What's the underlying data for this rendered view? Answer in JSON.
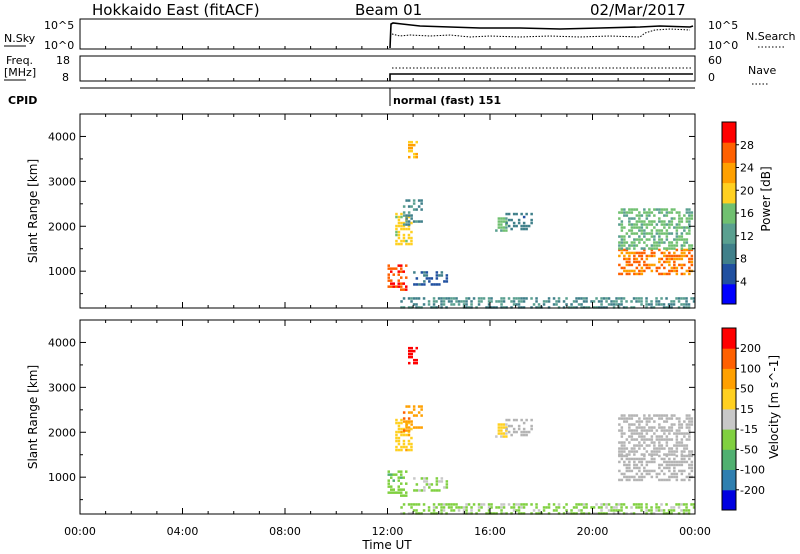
{
  "header": {
    "title": "Hokkaido East (fitACF)",
    "beam": "Beam 01",
    "date": "02/Mar/2017"
  },
  "strips": {
    "nsky_label": "N.Sky",
    "nsky_ticks": [
      "10^5",
      "10^0"
    ],
    "nsearch_label": "N.Search",
    "nsearch_ticks": [
      "10^5",
      "10^0"
    ],
    "freq_label_1": "Freq.",
    "freq_label_2": "[MHz]",
    "freq_ticks": [
      "18",
      "8"
    ],
    "nave_label": "Nave",
    "nave_ticks": [
      "60",
      "0"
    ],
    "cpid_label": "CPID",
    "cpid_value": "normal (fast) 151"
  },
  "colors": {
    "power_scale": [
      "#0000ff",
      "#2050a0",
      "#40808a",
      "#5aa090",
      "#70c070",
      "#ffd020",
      "#ffa000",
      "#ff6000",
      "#ff0000"
    ],
    "velocity_scale": [
      "#0000e0",
      "#2f7fb0",
      "#50b070",
      "#80d040",
      "#c8c8c8",
      "#ffd020",
      "#ffa000",
      "#ff6000",
      "#ff0000"
    ],
    "ground_scatter": "#b4b4b4"
  },
  "chart_data": [
    {
      "type": "heatmap",
      "name": "power",
      "xlabel": "Time UT",
      "ylabel": "Slant Range [km]",
      "xlim_hours": [
        0,
        24
      ],
      "x_ticks": [
        "00:00",
        "04:00",
        "08:00",
        "12:00",
        "16:00",
        "20:00",
        "00:00"
      ],
      "ylim_km": [
        180,
        4500
      ],
      "y_ticks": [
        1000,
        2000,
        3000,
        4000
      ],
      "colorbar_label": "Power [dB]",
      "colorbar_ticks": [
        "28",
        "24",
        "20",
        "16",
        "12",
        "8",
        "4"
      ],
      "colorbar_range": [
        0,
        30
      ],
      "regions": [
        {
          "t0": 12.0,
          "t1": 12.7,
          "r0": 550,
          "r1": 1150,
          "value": 26
        },
        {
          "t0": 12.3,
          "t1": 12.9,
          "r0": 1600,
          "r1": 2300,
          "value": 18
        },
        {
          "t0": 12.6,
          "t1": 13.3,
          "r0": 2000,
          "r1": 2600,
          "value": 10
        },
        {
          "t0": 12.8,
          "t1": 13.1,
          "r0": 3500,
          "r1": 3900,
          "value": 20
        },
        {
          "t0": 13.0,
          "t1": 14.3,
          "r0": 700,
          "r1": 1000,
          "value": 6
        },
        {
          "t0": 16.2,
          "t1": 16.6,
          "r0": 1900,
          "r1": 2200,
          "value": 14
        },
        {
          "t0": 16.6,
          "t1": 17.6,
          "r0": 1900,
          "r1": 2300,
          "value": 8
        },
        {
          "t0": 21.0,
          "t1": 23.9,
          "r0": 900,
          "r1": 1500,
          "value": 24
        },
        {
          "t0": 21.0,
          "t1": 23.9,
          "r0": 1500,
          "r1": 2400,
          "value": 14
        },
        {
          "t0": 12.5,
          "t1": 24.0,
          "r0": 180,
          "r1": 420,
          "value": 10
        }
      ]
    },
    {
      "type": "heatmap",
      "name": "velocity",
      "xlabel": "Time UT",
      "ylabel": "Slant Range [km]",
      "xlim_hours": [
        0,
        24
      ],
      "x_ticks": [
        "00:00",
        "04:00",
        "08:00",
        "12:00",
        "16:00",
        "20:00",
        "00:00"
      ],
      "ylim_km": [
        180,
        4500
      ],
      "y_ticks": [
        1000,
        2000,
        3000,
        4000
      ],
      "colorbar_label": "Velocity [m s^-1]",
      "colorbar_ticks": [
        "200",
        "100",
        "50",
        "15",
        "-15",
        "-50",
        "-100",
        "-200"
      ],
      "colorbar_range": [
        -250,
        250
      ],
      "regions": [
        {
          "t0": 12.0,
          "t1": 12.7,
          "r0": 550,
          "r1": 1150,
          "value": -60
        },
        {
          "t0": 12.3,
          "t1": 12.9,
          "r0": 1600,
          "r1": 2300,
          "value": 60
        },
        {
          "t0": 12.6,
          "t1": 13.3,
          "r0": 2000,
          "r1": 2600,
          "value": 120
        },
        {
          "t0": 12.8,
          "t1": 13.1,
          "r0": 3500,
          "r1": 3900,
          "value": 240
        },
        {
          "t0": 13.0,
          "t1": 14.3,
          "r0": 700,
          "r1": 1000,
          "value": -30
        },
        {
          "t0": 16.2,
          "t1": 16.6,
          "r0": 1900,
          "r1": 2200,
          "value": 40
        },
        {
          "t0": 16.6,
          "t1": 17.6,
          "r0": 1900,
          "r1": 2300,
          "value": 0
        },
        {
          "t0": 21.0,
          "t1": 23.9,
          "r0": 900,
          "r1": 1500,
          "value": 0
        },
        {
          "t0": 21.0,
          "t1": 23.9,
          "r0": 1500,
          "r1": 2400,
          "value": 0
        },
        {
          "t0": 12.5,
          "t1": 24.0,
          "r0": 180,
          "r1": 420,
          "value": -40
        }
      ]
    }
  ]
}
